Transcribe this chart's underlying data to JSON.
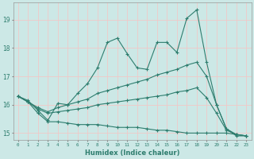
{
  "xlabel": "Humidex (Indice chaleur)",
  "ylabel": "",
  "bg_color": "#cce8e6",
  "grid_color": "#f0c8c8",
  "line_color": "#2e7d6e",
  "xlim": [
    -0.5,
    23.5
  ],
  "ylim": [
    14.75,
    19.6
  ],
  "yticks": [
    15,
    16,
    17,
    18,
    19
  ],
  "xticks": [
    0,
    1,
    2,
    3,
    4,
    5,
    6,
    7,
    8,
    9,
    10,
    11,
    12,
    13,
    14,
    15,
    16,
    17,
    18,
    19,
    20,
    21,
    22,
    23
  ],
  "line1_x": [
    0,
    1,
    2,
    3,
    4,
    5,
    6,
    7,
    8,
    9,
    10,
    11,
    12,
    13,
    14,
    15,
    16,
    17,
    18,
    19,
    20,
    21,
    22,
    23
  ],
  "line1_y": [
    16.3,
    16.15,
    15.8,
    15.45,
    16.05,
    16.0,
    16.4,
    16.75,
    17.3,
    18.2,
    18.35,
    17.8,
    17.3,
    17.25,
    18.2,
    18.2,
    17.85,
    19.05,
    19.35,
    17.5,
    16.0,
    15.15,
    14.9,
    14.9
  ],
  "line2_x": [
    0,
    1,
    2,
    3,
    4,
    5,
    6,
    7,
    8,
    9,
    10,
    11,
    12,
    13,
    14,
    15,
    16,
    17,
    18,
    19,
    20,
    21,
    22,
    23
  ],
  "line2_y": [
    16.3,
    16.1,
    15.9,
    15.75,
    15.9,
    16.0,
    16.1,
    16.2,
    16.4,
    16.5,
    16.6,
    16.7,
    16.8,
    16.9,
    17.05,
    17.15,
    17.25,
    17.4,
    17.5,
    17.0,
    16.0,
    15.15,
    14.95,
    14.9
  ],
  "line3_x": [
    0,
    1,
    2,
    3,
    4,
    5,
    6,
    7,
    8,
    9,
    10,
    11,
    12,
    13,
    14,
    15,
    16,
    17,
    18,
    19,
    20,
    21,
    22,
    23
  ],
  "line3_y": [
    16.3,
    16.1,
    15.85,
    15.7,
    15.75,
    15.8,
    15.85,
    15.9,
    16.0,
    16.05,
    16.1,
    16.15,
    16.2,
    16.25,
    16.3,
    16.35,
    16.45,
    16.5,
    16.6,
    16.25,
    15.7,
    15.1,
    14.95,
    14.9
  ],
  "line4_x": [
    0,
    1,
    2,
    3,
    4,
    5,
    6,
    7,
    8,
    9,
    10,
    11,
    12,
    13,
    14,
    15,
    16,
    17,
    18,
    19,
    20,
    21,
    22,
    23
  ],
  "line4_y": [
    16.3,
    16.1,
    15.7,
    15.4,
    15.4,
    15.35,
    15.3,
    15.3,
    15.3,
    15.25,
    15.2,
    15.2,
    15.2,
    15.15,
    15.1,
    15.1,
    15.05,
    15.0,
    15.0,
    15.0,
    15.0,
    15.0,
    14.95,
    14.9
  ]
}
